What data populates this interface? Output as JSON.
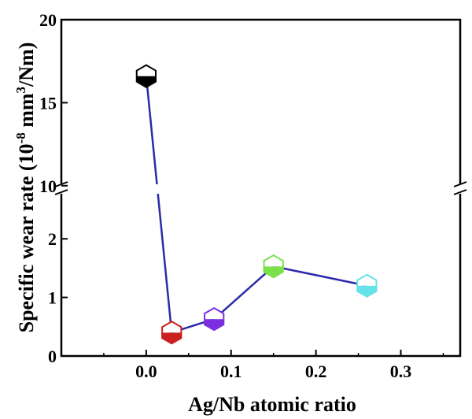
{
  "chart_data": {
    "type": "scatter",
    "xlabel": "Ag/Nb atomic ratio",
    "ylabel": {
      "prefix": "Specific wear rate (10",
      "exp1": "-8",
      "mid": " mm",
      "exp2": "3",
      "suffix": "/Nm)"
    },
    "xlim": [
      -0.1,
      0.37
    ],
    "ylim_lower": [
      0,
      2.85
    ],
    "ylim_upper": [
      9.8,
      20
    ],
    "axis_break": true,
    "x_ticks": [
      "0.0",
      "0.1",
      "0.2",
      "0.3"
    ],
    "y_ticks_lower": [
      "0",
      "1",
      "2"
    ],
    "y_ticks_upper": [
      "10",
      "15",
      "20"
    ],
    "line_color": "#2b2ba8",
    "points": [
      {
        "x": 0.0,
        "y": 16.6,
        "color": "#000000"
      },
      {
        "x": 0.03,
        "y": 0.4,
        "color": "#cc1f1f"
      },
      {
        "x": 0.08,
        "y": 0.63,
        "color": "#7b2ee0"
      },
      {
        "x": 0.15,
        "y": 1.53,
        "color": "#7be04a"
      },
      {
        "x": 0.26,
        "y": 1.2,
        "color": "#66e3e8"
      }
    ]
  }
}
